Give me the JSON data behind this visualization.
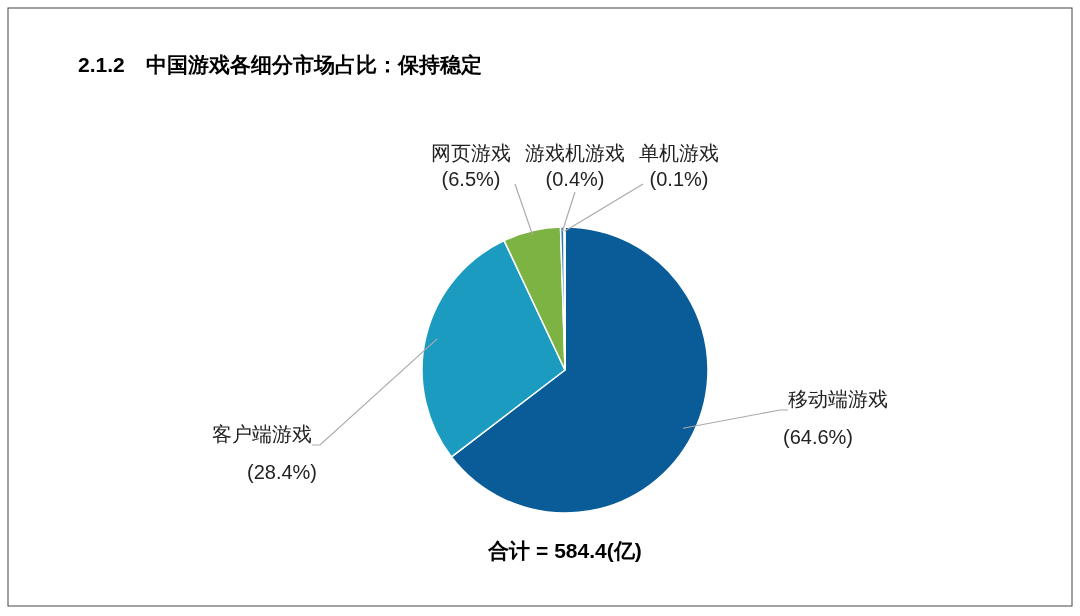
{
  "chart_data": {
    "type": "pie",
    "title": "2.1.2　中国游戏各细分市场占比：保持稳定",
    "categories": [
      "移动端游戏",
      "客户端游戏",
      "网页游戏",
      "游戏机游戏",
      "单机游戏"
    ],
    "values": [
      64.6,
      28.4,
      6.5,
      0.4,
      0.1
    ],
    "value_labels": [
      "(64.6%)",
      "(28.4%)",
      "(6.5%)",
      "(0.4%)",
      "(0.1%)"
    ],
    "colors": [
      "#0a5c99",
      "#1b9bc0",
      "#7cb342",
      "#2e75b6",
      "#9fc5e8"
    ],
    "annotations": [
      "合计 = 584.4(亿)"
    ]
  }
}
